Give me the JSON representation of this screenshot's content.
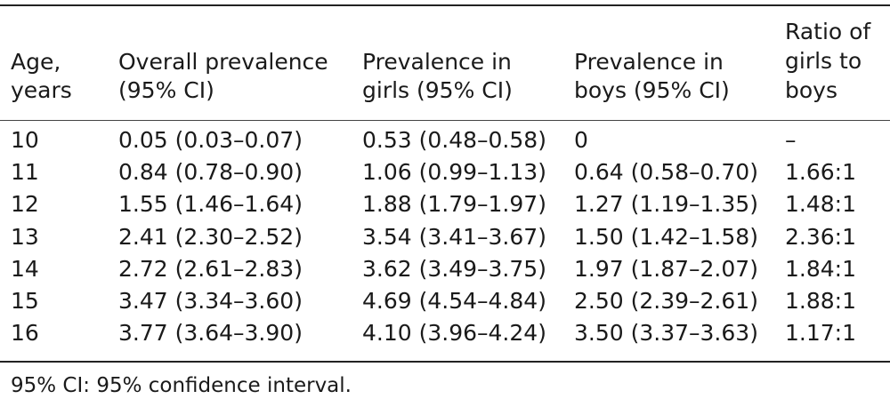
{
  "table": {
    "headers": [
      [
        "Age,",
        "years"
      ],
      [
        "Overall prevalence",
        "(95% CI)"
      ],
      [
        "Prevalence in",
        "girls (95% CI)"
      ],
      [
        "Prevalence in",
        "boys (95% CI)"
      ],
      [
        "Ratio of",
        "girls to",
        "boys"
      ]
    ],
    "rows": [
      [
        "10",
        "0.05 (0.03–0.07)",
        "0.53 (0.48–0.58)",
        "0",
        "–"
      ],
      [
        "11",
        "0.84 (0.78–0.90)",
        "1.06 (0.99–1.13)",
        "0.64 (0.58–0.70)",
        "1.66:1"
      ],
      [
        "12",
        "1.55 (1.46–1.64)",
        "1.88 (1.79–1.97)",
        "1.27 (1.19–1.35)",
        "1.48:1"
      ],
      [
        "13",
        "2.41 (2.30–2.52)",
        "3.54 (3.41–3.67)",
        "1.50 (1.42–1.58)",
        "2.36:1"
      ],
      [
        "14",
        "2.72 (2.61–2.83)",
        "3.62 (3.49–3.75)",
        "1.97 (1.87–2.07)",
        "1.84:1"
      ],
      [
        "15",
        "3.47 (3.34–3.60)",
        "4.69 (4.54–4.84)",
        "2.50 (2.39–2.61)",
        "1.88:1"
      ],
      [
        "16",
        "3.77 (3.64–3.90)",
        "4.10 (3.96–4.24)",
        "3.50 (3.37–3.63)",
        "1.17:1"
      ]
    ]
  },
  "footnote": "95% CI: 95% confidence interval."
}
